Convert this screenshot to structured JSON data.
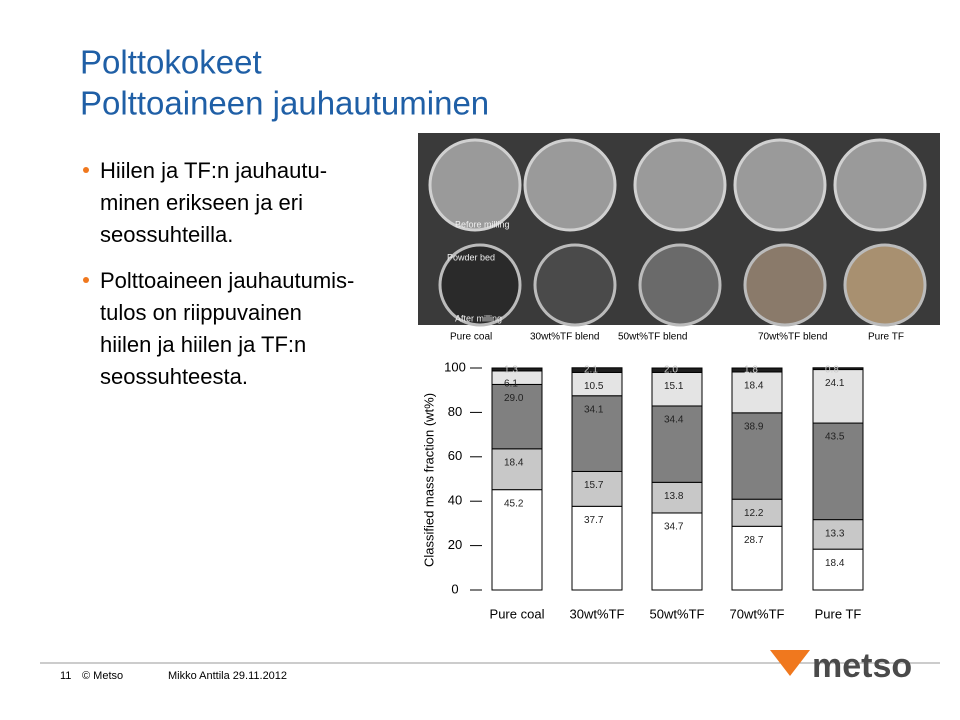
{
  "slide": {
    "title": [
      "Polttokokeet",
      "Polttoaineen jauhautuminen"
    ],
    "bullets": [
      [
        "Hiilen ja TF:n jauhautu-",
        "minen erikseen ja eri",
        "seossuhteilla."
      ],
      [
        "Polttoaineen jauhautumis-",
        "tulos on riippuvainen",
        "hiilen ja hiilen ja TF:n",
        "seossuhteesta."
      ]
    ],
    "photo": {
      "before": "Before milling",
      "bed": "Powder bed",
      "after": "After milling",
      "columns": [
        "Pure coal",
        "30wt%TF blend",
        "50wt%TF blend",
        "70wt%TF blend",
        "Pure TF"
      ]
    },
    "footer": {
      "page": "11",
      "copyright": "© Metso",
      "author": "Mikko Anttila 29.11.2012",
      "logo": "metso"
    }
  },
  "chart_data": {
    "type": "stacked-bar",
    "y_label": "Classified mass fraction (wt%)",
    "categories": [
      "Pure coal",
      "30wt%TF",
      "50wt%TF",
      "70wt%TF",
      "Pure TF"
    ],
    "series": [
      {
        "color": "#ffffff",
        "values": [
          45.2,
          37.7,
          34.7,
          28.7,
          18.4
        ],
        "value_labels": [
          "45.2",
          "37.7",
          "34.7",
          "28.7",
          "18.4"
        ]
      },
      {
        "color": "#c8c8c8",
        "values": [
          18.4,
          15.7,
          13.8,
          12.2,
          13.3
        ],
        "value_labels": [
          "18.4",
          "15.7",
          "13.8",
          "12.2",
          "13.3"
        ]
      },
      {
        "color": "#808080",
        "values": [
          29.0,
          34.1,
          34.4,
          38.9,
          43.5
        ],
        "value_labels": [
          "29.0",
          "34.1",
          "34.4",
          "38.9",
          "43.5"
        ]
      },
      {
        "color": "#e4e4e4",
        "values": [
          6.1,
          10.5,
          15.1,
          18.4,
          24.1
        ],
        "value_labels": [
          "6.1",
          "10.5",
          "15.1",
          "18.4",
          "24.1"
        ]
      },
      {
        "color": "#1e1e1e",
        "values": [
          1.3,
          2.1,
          2.0,
          1.8,
          0.8
        ],
        "value_labels": [
          "1.3",
          "2.1",
          "2.0",
          "1.8",
          "0.8"
        ]
      }
    ],
    "ylim": [
      0,
      100
    ],
    "yticks": [
      0,
      20,
      40,
      60,
      80,
      100
    ]
  }
}
